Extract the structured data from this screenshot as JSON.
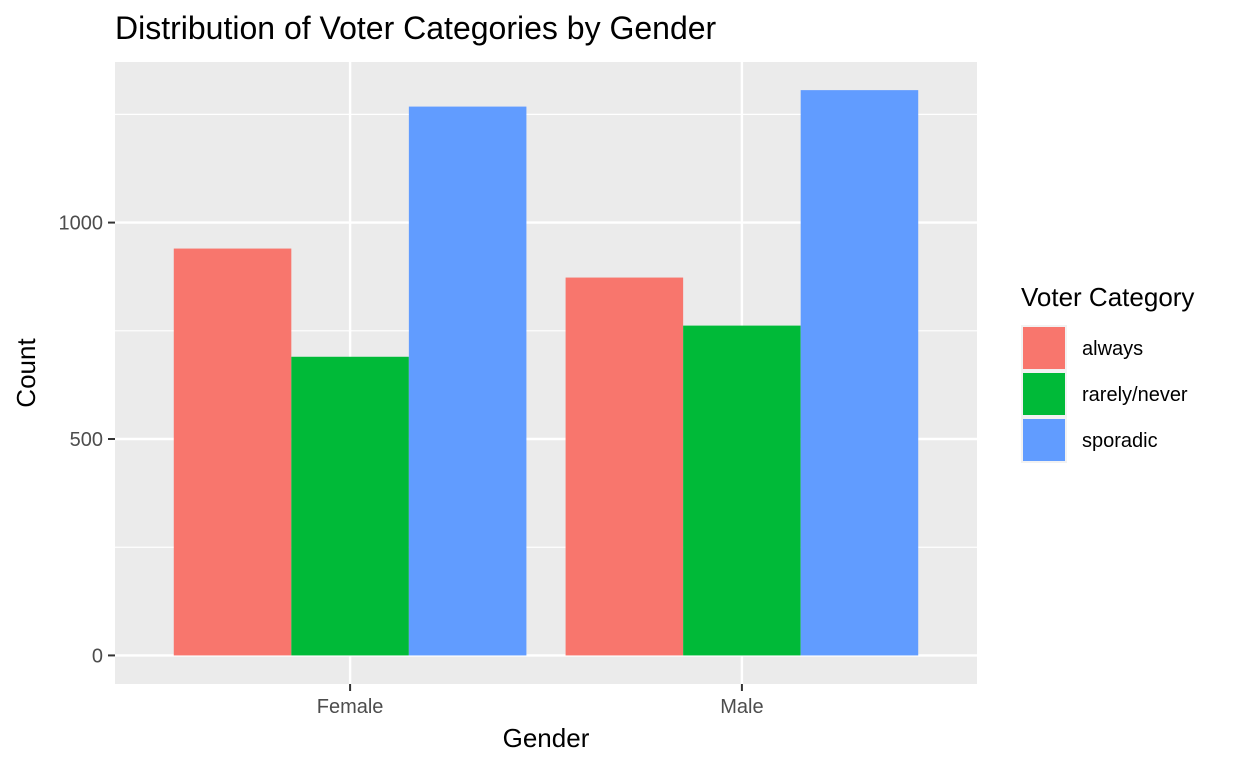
{
  "chart_data": {
    "type": "bar",
    "title": "Distribution of Voter Categories by Gender",
    "xlabel": "Gender",
    "ylabel": "Count",
    "categories": [
      "Female",
      "Male"
    ],
    "series": [
      {
        "name": "always",
        "values": [
          940,
          873
        ],
        "color": "#F8766D"
      },
      {
        "name": "rarely/never",
        "values": [
          690,
          762
        ],
        "color": "#00BA38"
      },
      {
        "name": "sporadic",
        "values": [
          1268,
          1306
        ],
        "color": "#619CFF"
      }
    ],
    "ylim": [
      -66,
      1371
    ],
    "yticks": [
      0,
      500,
      1000
    ],
    "ytick_labels": [
      "0",
      "500",
      "1000"
    ],
    "grid": true,
    "panel_background": "#EBEBEB",
    "grid_color": "#FFFFFF",
    "legend": {
      "title": "Voter Category",
      "placement": "right"
    }
  }
}
